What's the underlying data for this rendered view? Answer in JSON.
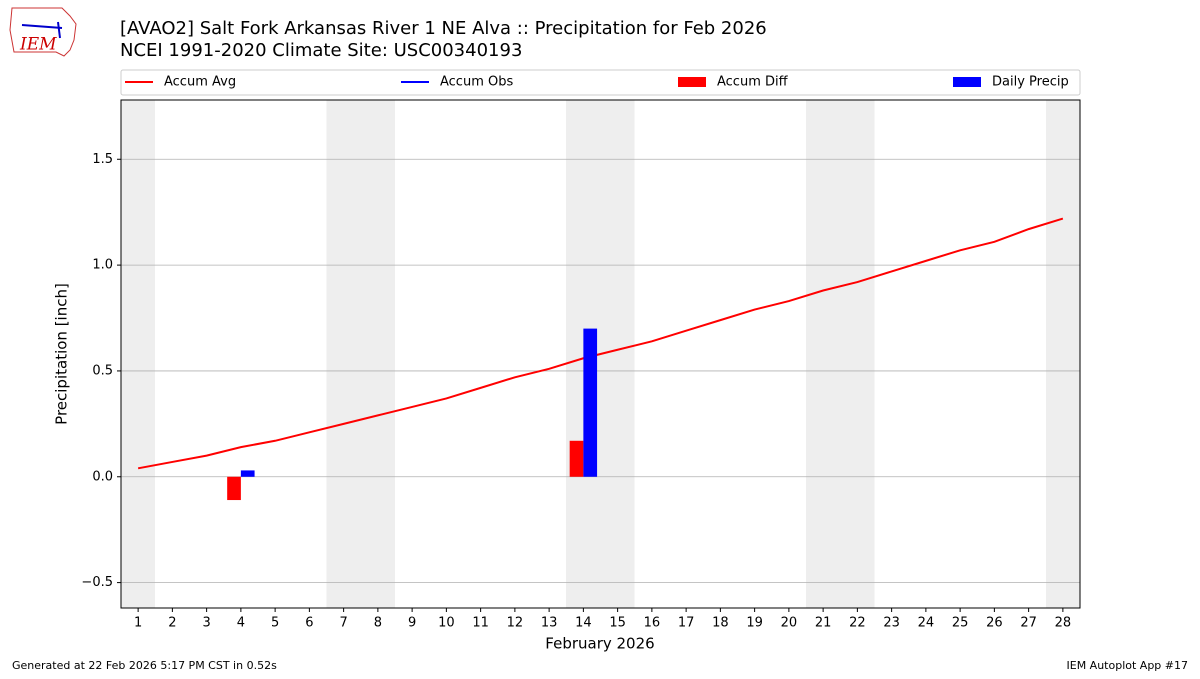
{
  "chart_data": {
    "type": "bar",
    "title": "[AVAO2] Salt Fork Arkansas River 1 NE Alva :: Precipitation for Feb 2026",
    "subtitle": "NCEI 1991-2020 Climate Site: USC00340193",
    "x_label": "February 2026",
    "y_label": "Precipitation [inch]",
    "logo_text": "IEM",
    "footer_left": "Generated at 22 Feb 2026 5:17 PM CST in 0.52s",
    "footer_right": "IEM Autoplot App #17",
    "categories": [
      "1",
      "2",
      "3",
      "4",
      "5",
      "6",
      "7",
      "8",
      "9",
      "10",
      "11",
      "12",
      "13",
      "14",
      "15",
      "16",
      "17",
      "18",
      "19",
      "20",
      "21",
      "22",
      "23",
      "24",
      "25",
      "26",
      "27",
      "28"
    ],
    "xlim": [
      0.5,
      28.5
    ],
    "ylim": [
      -0.62,
      1.78
    ],
    "yticks": [
      {
        "value": -0.5,
        "label": "−0.5"
      },
      {
        "value": 0,
        "label": "0.0"
      },
      {
        "value": 0.5,
        "label": "0.5"
      },
      {
        "value": 1,
        "label": "1.0"
      },
      {
        "value": 1.5,
        "label": "1.5"
      }
    ],
    "grid": true,
    "series": [
      {
        "name": "Accum Avg",
        "kind": "line",
        "color": "#ff0000",
        "values": [
          0.04,
          0.07,
          0.1,
          0.14,
          0.17,
          0.21,
          0.25,
          0.29,
          0.33,
          0.37,
          0.42,
          0.47,
          0.51,
          0.56,
          0.6,
          0.64,
          0.69,
          0.74,
          0.79,
          0.83,
          0.88,
          0.92,
          0.97,
          1.02,
          1.07,
          1.11,
          1.17,
          1.22
        ]
      },
      {
        "name": "Accum Obs",
        "kind": "line",
        "color": "#0000ff",
        "values": [
          null,
          null,
          null,
          null,
          null,
          null,
          null,
          null,
          null,
          null,
          null,
          null,
          null,
          null,
          null,
          null,
          null,
          null,
          null,
          null,
          null,
          null,
          null,
          null,
          null,
          null,
          null,
          null
        ]
      },
      {
        "name": "Accum Diff",
        "kind": "bar",
        "color": "#ff0000",
        "values": [
          null,
          null,
          null,
          -0.11,
          null,
          null,
          null,
          null,
          null,
          null,
          null,
          null,
          null,
          0.17,
          null,
          null,
          null,
          null,
          null,
          null,
          null,
          null,
          null,
          null,
          null,
          null,
          null,
          null
        ]
      },
      {
        "name": "Daily Precip",
        "kind": "bar",
        "color": "#0000ff",
        "values": [
          null,
          null,
          null,
          0.03,
          null,
          null,
          null,
          null,
          null,
          null,
          null,
          null,
          null,
          0.7,
          null,
          null,
          null,
          null,
          null,
          null,
          null,
          null,
          null,
          null,
          null,
          null,
          null,
          null
        ]
      }
    ]
  }
}
